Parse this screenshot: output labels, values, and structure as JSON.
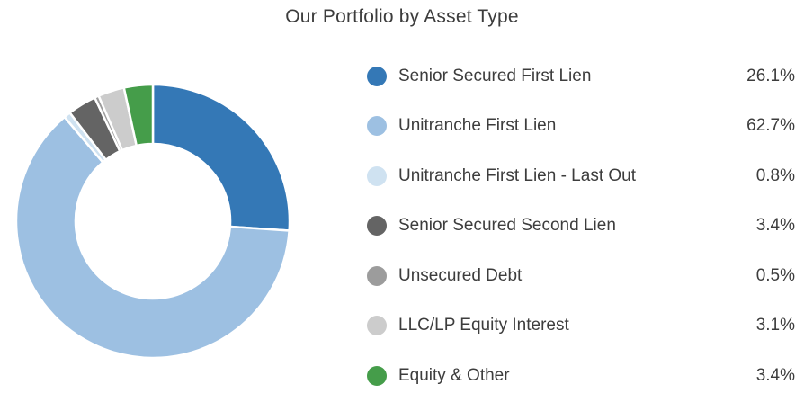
{
  "title": "Our Portfolio by Asset Type",
  "chart_data": {
    "type": "pie",
    "donut": true,
    "title": "Our Portfolio by Asset Type",
    "legend_position": "right",
    "start_angle_deg": 0,
    "direction": "clockwise",
    "inner_radius_ratio": 0.566,
    "series": [
      {
        "label": "Senior Secured First Lien",
        "value": 26.1,
        "display": "26.1%",
        "color": "#3478B6"
      },
      {
        "label": "Unitranche First Lien",
        "value": 62.7,
        "display": "62.7%",
        "color": "#9DC0E2"
      },
      {
        "label": "Unitranche First Lien - Last Out",
        "value": 0.8,
        "display": "0.8%",
        "color": "#CFE2F1"
      },
      {
        "label": "Senior Secured Second Lien",
        "value": 3.4,
        "display": "3.4%",
        "color": "#646464"
      },
      {
        "label": "Unsecured Debt",
        "value": 0.5,
        "display": "0.5%",
        "color": "#9C9C9C"
      },
      {
        "label": "LLC/LP Equity Interest",
        "value": 3.1,
        "display": "3.1%",
        "color": "#CCCCCC"
      },
      {
        "label": "Equity & Other",
        "value": 3.4,
        "display": "3.4%",
        "color": "#459D4A"
      }
    ]
  },
  "style_colors": {
    "background": "#ffffff",
    "text": "#3d3d3d",
    "slice_border": "#ffffff"
  }
}
